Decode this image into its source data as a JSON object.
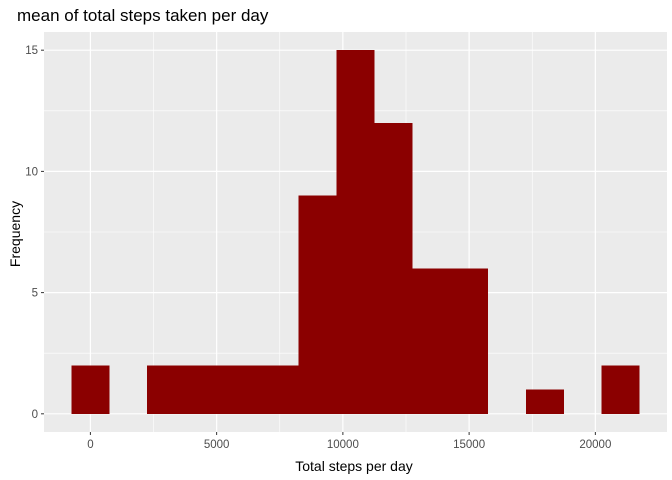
{
  "chart_data": {
    "type": "bar",
    "subtype": "histogram",
    "title": "mean of total steps taken per day",
    "xlabel": "Total steps per day",
    "ylabel": "Frequency",
    "bin_width": 1500,
    "bins": [
      {
        "x0": -750,
        "x1": 750,
        "count": 2
      },
      {
        "x0": 750,
        "x1": 2250,
        "count": 0
      },
      {
        "x0": 2250,
        "x1": 3750,
        "count": 2
      },
      {
        "x0": 3750,
        "x1": 5250,
        "count": 2
      },
      {
        "x0": 5250,
        "x1": 6750,
        "count": 2
      },
      {
        "x0": 6750,
        "x1": 8250,
        "count": 2
      },
      {
        "x0": 8250,
        "x1": 9750,
        "count": 9
      },
      {
        "x0": 9750,
        "x1": 11250,
        "count": 15
      },
      {
        "x0": 11250,
        "x1": 12750,
        "count": 12
      },
      {
        "x0": 12750,
        "x1": 14250,
        "count": 6
      },
      {
        "x0": 14250,
        "x1": 15750,
        "count": 6
      },
      {
        "x0": 15750,
        "x1": 17250,
        "count": 0
      },
      {
        "x0": 17250,
        "x1": 18750,
        "count": 1
      },
      {
        "x0": 18750,
        "x1": 20250,
        "count": 0
      },
      {
        "x0": 20250,
        "x1": 21750,
        "count": 2
      }
    ],
    "x_ticks": [
      0,
      5000,
      10000,
      15000,
      20000
    ],
    "x_tick_labels": [
      "0",
      "5000",
      "10000",
      "15000",
      "20000"
    ],
    "y_ticks": [
      0,
      5,
      10,
      15
    ],
    "y_tick_labels": [
      "0",
      "5",
      "10",
      "15"
    ],
    "xlim": [
      -1837.5,
      22837.5
    ],
    "ylim": [
      -0.75,
      15.75
    ],
    "grid": true,
    "bar_color": "#8b0000",
    "panel_background": "#ebebeb",
    "grid_color": "#ffffff"
  }
}
